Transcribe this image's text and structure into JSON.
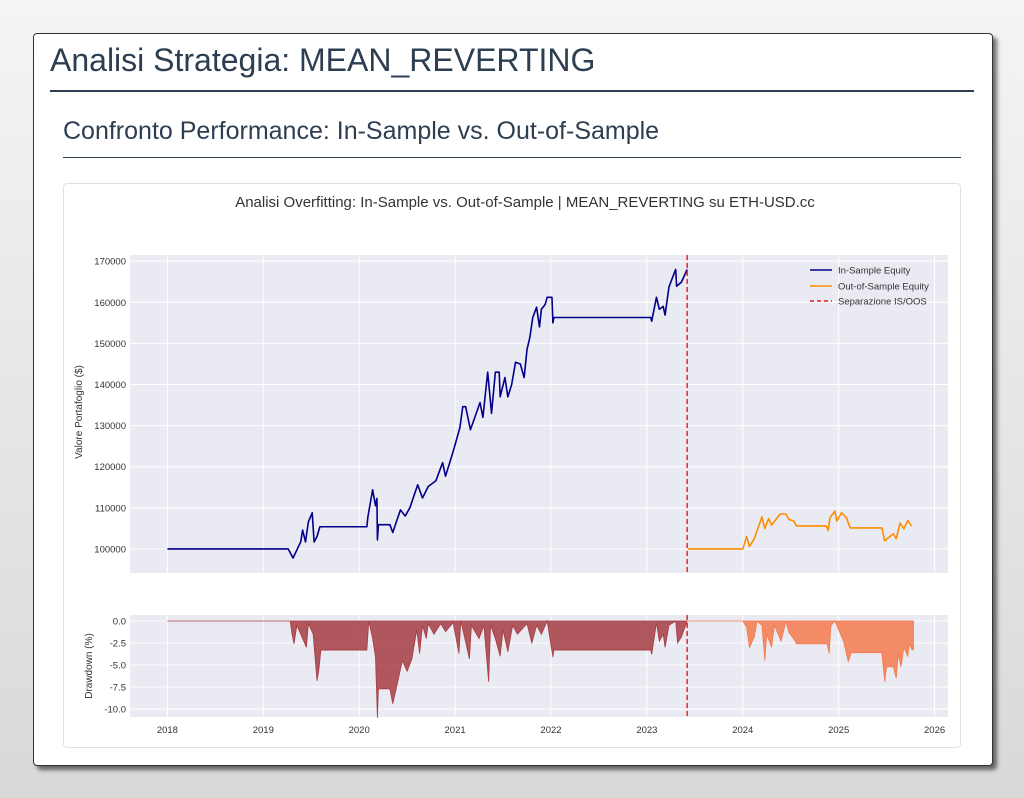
{
  "header": {
    "title": "Analisi Strategia: MEAN_REVERTING"
  },
  "section": {
    "title": "Confronto Performance: In-Sample vs. Out-of-Sample"
  },
  "chart_data": [
    {
      "type": "line",
      "title": "Analisi Overfitting: In-Sample vs. Out-of-Sample | MEAN_REVERTING su ETH-USD.cc",
      "xlabel": "",
      "ylabel": "Valore Portafoglio ($)",
      "xlim": [
        2017.61,
        2026.14
      ],
      "ylim": [
        94150,
        171500
      ],
      "yticks": [
        100000,
        110000,
        120000,
        130000,
        140000,
        150000,
        160000,
        170000
      ],
      "grid": true,
      "legend": "top-right",
      "legend_entries": [
        "In-Sample Equity",
        "Out-of-Sample Equity",
        "Separazione IS/OOS"
      ],
      "separator_x": 2023.42,
      "colors": {
        "in_sample": "#00008b",
        "out_of_sample": "#ff8c00",
        "separator": "#e31a1c",
        "background": "#eaeaf2"
      },
      "series": [
        {
          "name": "In-Sample Equity",
          "x": [
            2018.0,
            2019.26,
            2019.31,
            2019.39,
            2019.41,
            2019.44,
            2019.47,
            2019.51,
            2019.53,
            2019.56,
            2019.59,
            2020.08,
            2020.09,
            2020.14,
            2020.17,
            2020.185,
            2020.19,
            2020.2,
            2020.32,
            2020.35,
            2020.43,
            2020.48,
            2020.53,
            2020.61,
            2020.66,
            2020.72,
            2020.8,
            2020.87,
            2020.9,
            2020.98,
            2021.05,
            2021.08,
            2021.11,
            2021.16,
            2021.26,
            2021.29,
            2021.34,
            2021.38,
            2021.42,
            2021.46,
            2021.47,
            2021.52,
            2021.55,
            2021.59,
            2021.63,
            2021.68,
            2021.72,
            2021.75,
            2021.78,
            2021.81,
            2021.85,
            2021.88,
            2021.9,
            2021.94,
            2021.96,
            2022.01,
            2022.02,
            2022.03,
            2023.04,
            2023.05,
            2023.1,
            2023.13,
            2023.17,
            2023.19,
            2023.23,
            2023.3,
            2023.31,
            2023.36,
            2023.42
          ],
          "y": [
            100000,
            100000,
            97800,
            101700,
            104600,
            101700,
            106600,
            108800,
            101700,
            103000,
            105400,
            105400,
            107700,
            114400,
            110500,
            112300,
            102200,
            105900,
            105900,
            104000,
            109500,
            108000,
            110100,
            115600,
            112400,
            115200,
            116600,
            121000,
            117700,
            123700,
            129500,
            134600,
            134600,
            129000,
            135600,
            132000,
            143000,
            133000,
            143000,
            143000,
            137000,
            141700,
            137000,
            140000,
            145400,
            145000,
            141700,
            148500,
            151500,
            156300,
            158800,
            154000,
            158300,
            159500,
            161200,
            161200,
            155000,
            156300,
            156300,
            155400,
            161200,
            158300,
            159000,
            156900,
            163700,
            168000,
            163900,
            164900,
            168000
          ]
        },
        {
          "name": "Out-of-Sample Equity",
          "x": [
            2023.43,
            2024.0,
            2024.04,
            2024.07,
            2024.12,
            2024.2,
            2024.23,
            2024.27,
            2024.3,
            2024.39,
            2024.45,
            2024.48,
            2024.53,
            2024.56,
            2024.87,
            2024.89,
            2024.91,
            2024.96,
            2024.98,
            2025.03,
            2025.08,
            2025.12,
            2025.45,
            2025.48,
            2025.57,
            2025.6,
            2025.64,
            2025.68,
            2025.72,
            2025.76
          ],
          "y": [
            100000,
            100000,
            103000,
            100600,
            102500,
            107800,
            105000,
            107400,
            105800,
            108500,
            108500,
            107200,
            106800,
            105600,
            105600,
            104500,
            107600,
            109200,
            106800,
            108800,
            107600,
            105100,
            105100,
            102000,
            103700,
            102500,
            106300,
            104900,
            106900,
            105600
          ]
        }
      ]
    },
    {
      "type": "area",
      "xlabel": "",
      "ylabel": "Drawdown (%)",
      "xlim": [
        2017.61,
        2026.14
      ],
      "ylim": [
        -10.9,
        0.68
      ],
      "yticks": [
        0.0,
        -2.5,
        -5.0,
        -7.5,
        -10.0
      ],
      "xticks": [
        2018,
        2019,
        2020,
        2021,
        2022,
        2023,
        2024,
        2025,
        2026
      ],
      "grid": true,
      "separator_x": 2023.42,
      "colors": {
        "in_sample": "#a63c43",
        "out_of_sample": "#f47a4d",
        "separator": "#e31a1c"
      },
      "series": [
        {
          "x": [
            2018.0,
            2019.28,
            2019.3,
            2019.32,
            2019.35,
            2019.45,
            2019.47,
            2019.52,
            2019.56,
            2019.58,
            2019.6,
            2020.08,
            2020.1,
            2020.14,
            2020.17,
            2020.19,
            2020.2,
            2020.32,
            2020.35,
            2020.4,
            2020.45,
            2020.5,
            2020.55,
            2020.6,
            2020.63,
            2020.66,
            2020.7,
            2020.72,
            2020.78,
            2020.85,
            2020.9,
            2020.98,
            2021.04,
            2021.06,
            2021.15,
            2021.17,
            2021.25,
            2021.3,
            2021.35,
            2021.37,
            2021.42,
            2021.47,
            2021.5,
            2021.55,
            2021.6,
            2021.65,
            2021.75,
            2021.8,
            2021.85,
            2021.9,
            2021.96,
            2022.02,
            2022.03,
            2023.04,
            2023.05,
            2023.1,
            2023.13,
            2023.17,
            2023.19,
            2023.23,
            2023.3,
            2023.32,
            2023.36,
            2023.42
          ],
          "y": [
            0,
            0,
            -1.5,
            -2.6,
            -0.5,
            -3.0,
            -0.3,
            -1.5,
            -6.8,
            -5.5,
            -3.3,
            -3.3,
            0,
            -2.0,
            -4.1,
            -11.0,
            -7.7,
            -7.7,
            -9.4,
            -7.0,
            -4.5,
            -5.7,
            -4.3,
            -1.0,
            -3.7,
            -0.5,
            -2.0,
            -0.3,
            -1.5,
            -0.3,
            -1.2,
            -0.2,
            -3.7,
            0,
            -4.3,
            -0.5,
            -2.0,
            -0.5,
            -6.9,
            -0.5,
            -2.0,
            -4.0,
            -1.0,
            -3.5,
            -0.5,
            -1.5,
            -0.3,
            -2.5,
            -0.5,
            -1.5,
            0,
            -4.1,
            -3.3,
            -3.3,
            -3.8,
            -0.2,
            -2.3,
            -1.5,
            -3.0,
            -0.5,
            0,
            -2.5,
            -1.8,
            0
          ]
        },
        {
          "x": [
            2023.43,
            2024.0,
            2024.04,
            2024.07,
            2024.12,
            2024.15,
            2024.2,
            2024.23,
            2024.25,
            2024.3,
            2024.33,
            2024.4,
            2024.45,
            2024.48,
            2024.53,
            2024.56,
            2024.88,
            2024.9,
            2024.92,
            2024.96,
            2025.0,
            2025.05,
            2025.1,
            2025.13,
            2025.45,
            2025.48,
            2025.5,
            2025.57,
            2025.6,
            2025.62,
            2025.65,
            2025.68,
            2025.72,
            2025.74,
            2025.76,
            2025.78
          ],
          "y": [
            0,
            0,
            -0.7,
            -3.0,
            -1.8,
            0,
            -0.5,
            -4.5,
            -1.5,
            -3.0,
            -0.5,
            -2.3,
            0,
            -1.3,
            -2.0,
            -2.6,
            -2.6,
            -3.7,
            -0.5,
            0,
            -1.0,
            -2.3,
            -4.6,
            -3.6,
            -3.6,
            -6.9,
            -5.2,
            -5.2,
            -6.5,
            -3.8,
            -5.2,
            -3.0,
            -4.0,
            -2.5,
            -3.2,
            -3.3
          ]
        }
      ]
    }
  ]
}
